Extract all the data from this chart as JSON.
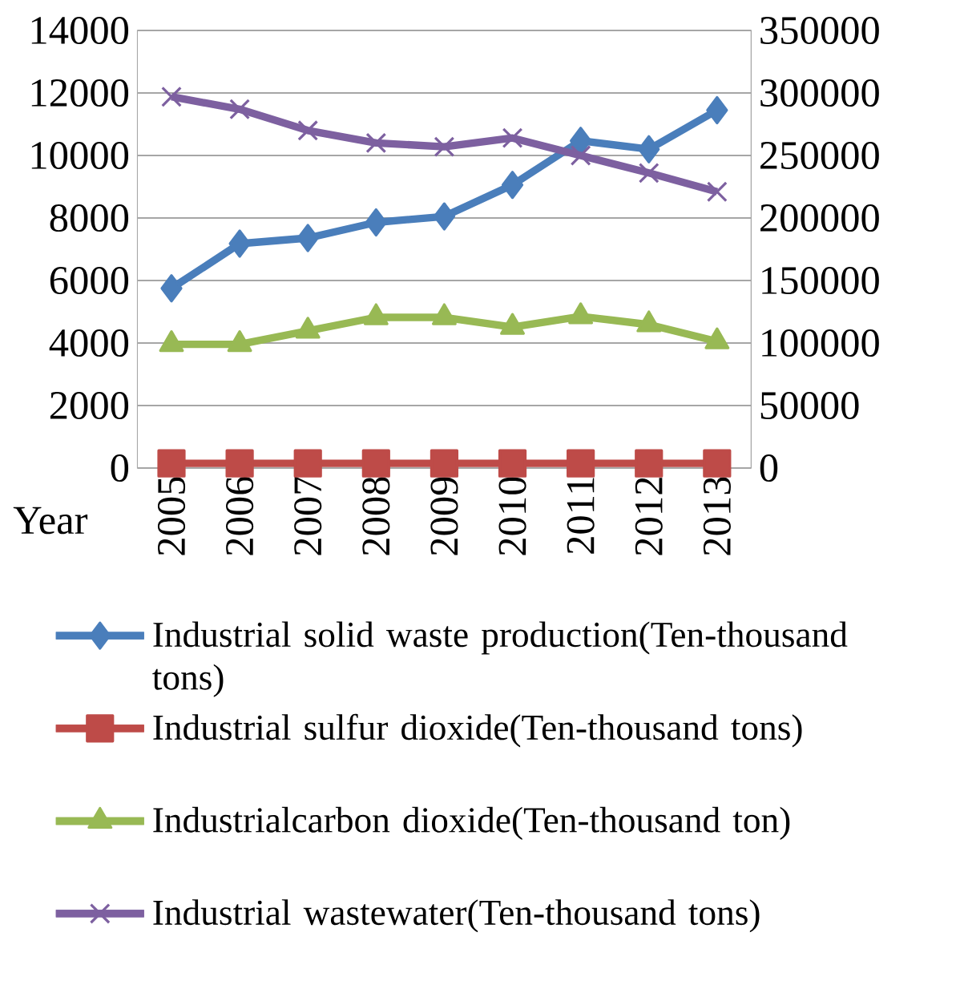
{
  "chart_data": {
    "type": "line",
    "xlabel": "Year",
    "categories": [
      "2005",
      "2006",
      "2007",
      "2008",
      "2009",
      "2010",
      "2011",
      "2012",
      "2013"
    ],
    "series": [
      {
        "name": "Industrial solid waste production(Ten-thousand tons)",
        "color": "#4a7ebb",
        "marker": "diamond",
        "values": [
          5750,
          7180,
          7360,
          7860,
          8050,
          9060,
          10470,
          10200,
          11450
        ]
      },
      {
        "name": "Industrial sulfur dioxide(Ten-thousand tons)",
        "color": "#be4b48",
        "marker": "square",
        "values": [
          150,
          150,
          150,
          150,
          150,
          150,
          150,
          150,
          150
        ]
      },
      {
        "name": "Industrialcarbon dioxide(Ten-thousand ton)",
        "color": "#98b954",
        "marker": "triangle",
        "values": [
          3960,
          3960,
          4390,
          4820,
          4820,
          4510,
          4850,
          4590,
          4050
        ]
      },
      {
        "name": "Industrial wastewater(Ten-thousand tons)",
        "color": "#7d60a0",
        "marker": "cross",
        "axis": "y2",
        "values": [
          297000,
          287000,
          270000,
          260000,
          257000,
          264000,
          250000,
          236000,
          221000
        ]
      }
    ],
    "ylim": [
      0,
      14000
    ],
    "yticks": [
      0,
      2000,
      4000,
      6000,
      8000,
      10000,
      12000,
      14000
    ],
    "y2lim": [
      0,
      350000
    ],
    "y2ticks": [
      0,
      50000,
      100000,
      150000,
      200000,
      250000,
      300000,
      350000
    ],
    "grid": "y",
    "legend": "bottom",
    "line_style": "solid"
  }
}
